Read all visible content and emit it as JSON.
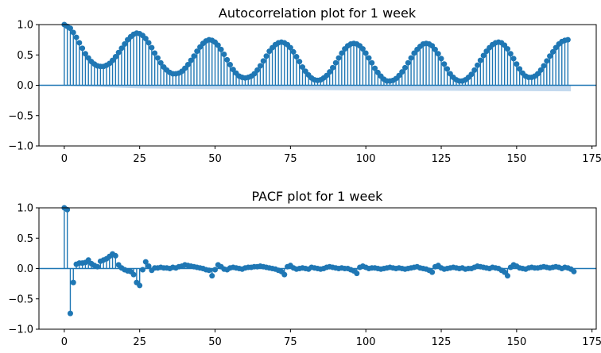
{
  "chart_data": [
    {
      "type": "stem",
      "title": "Autocorrelation plot for 1 week",
      "xlabel": "",
      "ylabel": "",
      "xlim": [
        -8.4,
        176.4
      ],
      "ylim": [
        -1.0,
        1.0
      ],
      "xticks": [
        0,
        25,
        50,
        75,
        100,
        125,
        150,
        175
      ],
      "yticks": [
        -1.0,
        -0.5,
        0.0,
        0.5,
        1.0
      ],
      "xtick_labels": [
        "0",
        "25",
        "50",
        "75",
        "100",
        "125",
        "150",
        "175"
      ],
      "ytick_labels": [
        "−1.0",
        "−0.5",
        "0.0",
        "0.5",
        "1.0"
      ],
      "grid": false,
      "color": "#1f77b4",
      "confidence_band_color": "#c3d9ee",
      "x_start": 0,
      "values": [
        1.0,
        0.97,
        0.94,
        0.87,
        0.79,
        0.7,
        0.61,
        0.52,
        0.45,
        0.39,
        0.35,
        0.32,
        0.31,
        0.31,
        0.33,
        0.36,
        0.41,
        0.47,
        0.54,
        0.61,
        0.68,
        0.75,
        0.8,
        0.84,
        0.86,
        0.85,
        0.82,
        0.77,
        0.7,
        0.62,
        0.53,
        0.45,
        0.37,
        0.3,
        0.25,
        0.21,
        0.19,
        0.19,
        0.2,
        0.23,
        0.28,
        0.34,
        0.41,
        0.48,
        0.56,
        0.63,
        0.69,
        0.73,
        0.75,
        0.74,
        0.71,
        0.66,
        0.59,
        0.51,
        0.42,
        0.34,
        0.26,
        0.2,
        0.15,
        0.13,
        0.12,
        0.13,
        0.15,
        0.19,
        0.25,
        0.32,
        0.4,
        0.48,
        0.56,
        0.62,
        0.67,
        0.7,
        0.71,
        0.7,
        0.67,
        0.62,
        0.55,
        0.47,
        0.39,
        0.3,
        0.23,
        0.17,
        0.12,
        0.09,
        0.08,
        0.09,
        0.12,
        0.16,
        0.22,
        0.29,
        0.37,
        0.45,
        0.53,
        0.6,
        0.65,
        0.68,
        0.69,
        0.68,
        0.65,
        0.6,
        0.53,
        0.45,
        0.37,
        0.28,
        0.21,
        0.15,
        0.1,
        0.07,
        0.07,
        0.08,
        0.11,
        0.16,
        0.22,
        0.29,
        0.37,
        0.45,
        0.53,
        0.59,
        0.64,
        0.68,
        0.69,
        0.68,
        0.65,
        0.59,
        0.52,
        0.44,
        0.35,
        0.27,
        0.19,
        0.13,
        0.09,
        0.07,
        0.07,
        0.09,
        0.13,
        0.18,
        0.25,
        0.33,
        0.41,
        0.49,
        0.56,
        0.62,
        0.67,
        0.7,
        0.71,
        0.7,
        0.66,
        0.6,
        0.52,
        0.44,
        0.35,
        0.27,
        0.2,
        0.15,
        0.13,
        0.13,
        0.15,
        0.19,
        0.25,
        0.32,
        0.4,
        0.48,
        0.55,
        0.62,
        0.68,
        0.72,
        0.74,
        0.75
      ],
      "confidence_interval": {
        "x": [
          0,
          25,
          50,
          75,
          100,
          125,
          150,
          168
        ],
        "lower": [
          -0.01,
          -0.05,
          -0.065,
          -0.075,
          -0.085,
          -0.09,
          -0.095,
          -0.1
        ],
        "upper": [
          0.0,
          0.0,
          0.0,
          0.0,
          0.0,
          0.0,
          0.0,
          0.0
        ]
      }
    },
    {
      "type": "stem",
      "title": "PACF plot for 1 week",
      "xlabel": "",
      "ylabel": "",
      "xlim": [
        -8.4,
        176.4
      ],
      "ylim": [
        -1.0,
        1.0
      ],
      "xticks": [
        0,
        25,
        50,
        75,
        100,
        125,
        150,
        175
      ],
      "yticks": [
        -1.0,
        -0.5,
        0.0,
        0.5,
        1.0
      ],
      "xtick_labels": [
        "0",
        "25",
        "50",
        "75",
        "100",
        "125",
        "150",
        "175"
      ],
      "ytick_labels": [
        "−1.0",
        "−0.5",
        "0.0",
        "0.5",
        "1.0"
      ],
      "grid": false,
      "color": "#1f77b4",
      "x_start": 0,
      "values": [
        1.0,
        0.97,
        -0.74,
        -0.23,
        0.07,
        0.09,
        0.09,
        0.1,
        0.14,
        0.08,
        0.05,
        0.03,
        0.12,
        0.14,
        0.16,
        0.2,
        0.24,
        0.21,
        0.06,
        0.01,
        -0.02,
        -0.04,
        -0.05,
        -0.1,
        -0.23,
        -0.28,
        -0.02,
        0.11,
        0.04,
        -0.03,
        0.01,
        0.01,
        0.02,
        0.01,
        0.01,
        0.0,
        0.02,
        0.01,
        0.03,
        0.04,
        0.06,
        0.05,
        0.04,
        0.03,
        0.02,
        0.01,
        0.0,
        -0.02,
        -0.03,
        -0.12,
        -0.02,
        0.06,
        0.03,
        -0.01,
        -0.02,
        0.01,
        0.02,
        0.01,
        0.0,
        -0.01,
        0.01,
        0.02,
        0.02,
        0.03,
        0.03,
        0.04,
        0.03,
        0.02,
        0.01,
        0.0,
        -0.01,
        -0.03,
        -0.05,
        -0.1,
        0.03,
        0.05,
        0.01,
        -0.01,
        0.0,
        0.01,
        0.0,
        -0.01,
        0.02,
        0.01,
        0.0,
        -0.01,
        0.0,
        0.02,
        0.03,
        0.02,
        0.01,
        0.0,
        0.01,
        0.0,
        0.0,
        -0.02,
        -0.04,
        -0.08,
        0.02,
        0.04,
        0.02,
        0.0,
        0.01,
        0.01,
        0.0,
        -0.01,
        0.0,
        0.01,
        0.02,
        0.01,
        0.0,
        0.01,
        0.0,
        -0.01,
        0.0,
        0.01,
        0.02,
        0.03,
        0.01,
        0.0,
        -0.01,
        -0.03,
        -0.06,
        0.03,
        0.05,
        0.01,
        -0.01,
        0.0,
        0.01,
        0.02,
        0.01,
        0.0,
        0.01,
        -0.01,
        0.0,
        0.0,
        0.02,
        0.04,
        0.03,
        0.02,
        0.01,
        0.0,
        0.02,
        0.01,
        0.0,
        -0.03,
        -0.06,
        -0.12,
        0.02,
        0.06,
        0.04,
        0.01,
        0.0,
        -0.01,
        0.01,
        0.02,
        0.01,
        0.01,
        0.02,
        0.03,
        0.02,
        0.01,
        0.02,
        0.03,
        0.02,
        0.0,
        0.02,
        0.01,
        -0.01,
        -0.05
      ]
    }
  ]
}
